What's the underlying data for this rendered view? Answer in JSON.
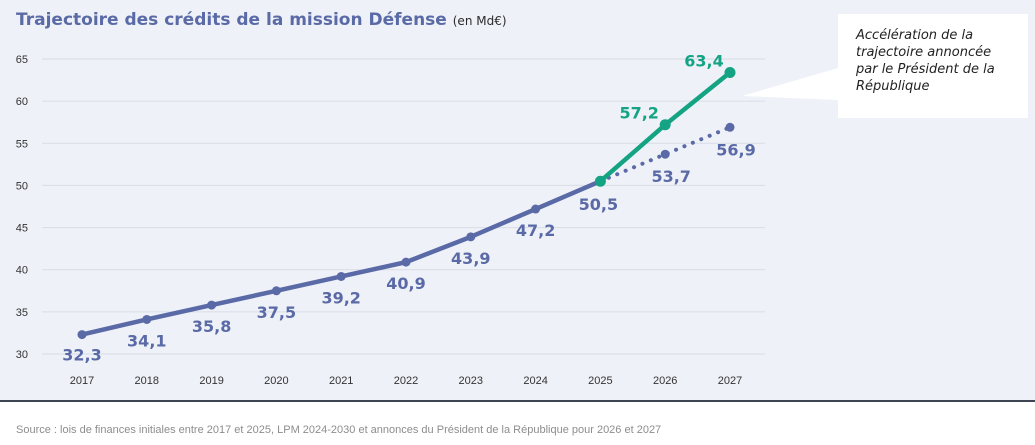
{
  "chart_data": {
    "type": "line",
    "title": "Trajectoire des crédits de la mission Défense",
    "unit": "(en Md€)",
    "categories": [
      "2017",
      "2018",
      "2019",
      "2020",
      "2021",
      "2022",
      "2023",
      "2024",
      "2025",
      "2026",
      "2027"
    ],
    "yticks": [
      "30",
      "35",
      "40",
      "45",
      "50",
      "55",
      "60",
      "65"
    ],
    "ylim": [
      30,
      65
    ],
    "grid": true,
    "series": [
      {
        "style": "solid",
        "color": "#5a6aa6",
        "x": [
          "2017",
          "2018",
          "2019",
          "2020",
          "2021",
          "2022",
          "2023",
          "2024",
          "2025"
        ],
        "values": [
          32.3,
          34.1,
          35.8,
          37.5,
          39.2,
          40.9,
          43.9,
          47.2,
          50.5
        ],
        "labels": [
          "32,3",
          "34,1",
          "35,8",
          "37,5",
          "39,2",
          "40,9",
          "43,9",
          "47,2",
          "50,5"
        ]
      },
      {
        "style": "dotted",
        "color": "#5a6aa6",
        "x": [
          "2025",
          "2026",
          "2027"
        ],
        "values": [
          50.5,
          53.7,
          56.9
        ],
        "labels": [
          "",
          "53,7",
          "56,9"
        ]
      },
      {
        "style": "solid",
        "color": "#14a383",
        "x": [
          "2025",
          "2026",
          "2027"
        ],
        "values": [
          50.5,
          57.2,
          63.4
        ],
        "labels": [
          "",
          "57,2",
          "63,4"
        ]
      }
    ],
    "annotation": "Accélération de la trajectoire annoncée par le Président de la République"
  },
  "source": "Source : lois de finances initiales entre 2017 et 2025, LPM 2024-2030 et annonces du Président de la République pour 2026 et 2027"
}
